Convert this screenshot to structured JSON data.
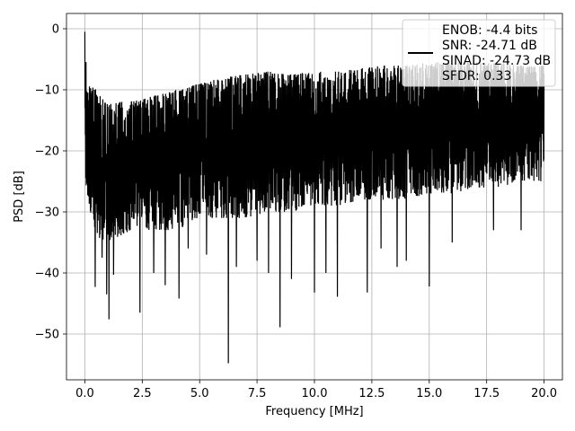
{
  "chart_data": {
    "type": "line",
    "xlabel": "Frequency [MHz]",
    "ylabel": "PSD [dB]",
    "xlim": [
      -0.8,
      20.8
    ],
    "ylim": [
      -57.5,
      2.5
    ],
    "x_ticks": [
      0.0,
      2.5,
      5.0,
      7.5,
      10.0,
      12.5,
      15.0,
      17.5,
      20.0
    ],
    "x_tick_labels": [
      "0.0",
      "2.5",
      "5.0",
      "7.5",
      "10.0",
      "12.5",
      "15.0",
      "17.5",
      "20.0"
    ],
    "y_ticks": [
      0,
      -10,
      -20,
      -30,
      -40,
      -50
    ],
    "y_tick_labels": [
      "0",
      "−10",
      "−20",
      "−30",
      "−40",
      "−50"
    ],
    "grid": true,
    "legend_position": "top-right",
    "series": [
      {
        "name": "ENOB: -4.4 bits\nSNR: -24.71 dB\nSINAD: -24.73 dB\nSFDR: 0.33",
        "color": "#000000",
        "x_start": 0.0,
        "x_end": 20.0,
        "top_envelope": [
          [
            0.0,
            -0.5
          ],
          [
            0.1,
            -9
          ],
          [
            0.5,
            -10
          ],
          [
            1.0,
            -12
          ],
          [
            2.0,
            -12
          ],
          [
            3.0,
            -11
          ],
          [
            4.0,
            -10
          ],
          [
            5.0,
            -9
          ],
          [
            6.0,
            -8
          ],
          [
            7.0,
            -7.5
          ],
          [
            8.0,
            -7
          ],
          [
            9.0,
            -7.5
          ],
          [
            10.0,
            -7
          ],
          [
            11.0,
            -7
          ],
          [
            12.0,
            -6.5
          ],
          [
            13.0,
            -6
          ],
          [
            14.0,
            -6
          ],
          [
            15.0,
            -5.5
          ],
          [
            16.0,
            -5.5
          ],
          [
            17.0,
            -5.5
          ],
          [
            18.0,
            -5.5
          ],
          [
            19.0,
            -6
          ],
          [
            20.0,
            -6
          ]
        ],
        "bottom_envelope": [
          [
            0.0,
            -26
          ],
          [
            0.5,
            -34
          ],
          [
            1.0,
            -35
          ],
          [
            2.0,
            -33
          ],
          [
            3.0,
            -33
          ],
          [
            4.0,
            -33
          ],
          [
            5.0,
            -31
          ],
          [
            6.0,
            -31
          ],
          [
            7.0,
            -31
          ],
          [
            8.0,
            -30
          ],
          [
            9.0,
            -30
          ],
          [
            10.0,
            -29
          ],
          [
            11.0,
            -29
          ],
          [
            12.0,
            -28
          ],
          [
            13.0,
            -28
          ],
          [
            14.0,
            -28
          ],
          [
            15.0,
            -27
          ],
          [
            16.0,
            -27
          ],
          [
            17.0,
            -26
          ],
          [
            18.0,
            -26
          ],
          [
            19.0,
            -25
          ],
          [
            20.0,
            -25
          ]
        ],
        "deep_dips": [
          [
            0.45,
            -42.3
          ],
          [
            0.75,
            -37.5
          ],
          [
            0.95,
            -43.5
          ],
          [
            1.05,
            -47.6
          ],
          [
            1.25,
            -40.3
          ],
          [
            2.4,
            -46.5
          ],
          [
            3.0,
            -40
          ],
          [
            3.5,
            -42
          ],
          [
            4.1,
            -44.2
          ],
          [
            4.5,
            -36
          ],
          [
            5.3,
            -37
          ],
          [
            6.25,
            -54.8
          ],
          [
            6.6,
            -39
          ],
          [
            7.5,
            -38
          ],
          [
            8.0,
            -40
          ],
          [
            8.5,
            -48.9
          ],
          [
            9.0,
            -41
          ],
          [
            10.0,
            -43.2
          ],
          [
            10.5,
            -40
          ],
          [
            11.0,
            -43.9
          ],
          [
            12.3,
            -43.2
          ],
          [
            12.9,
            -36
          ],
          [
            13.6,
            -39
          ],
          [
            14.0,
            -38
          ],
          [
            15.0,
            -42.2
          ],
          [
            16.0,
            -35
          ],
          [
            17.8,
            -33
          ],
          [
            19.0,
            -33
          ]
        ]
      }
    ]
  }
}
